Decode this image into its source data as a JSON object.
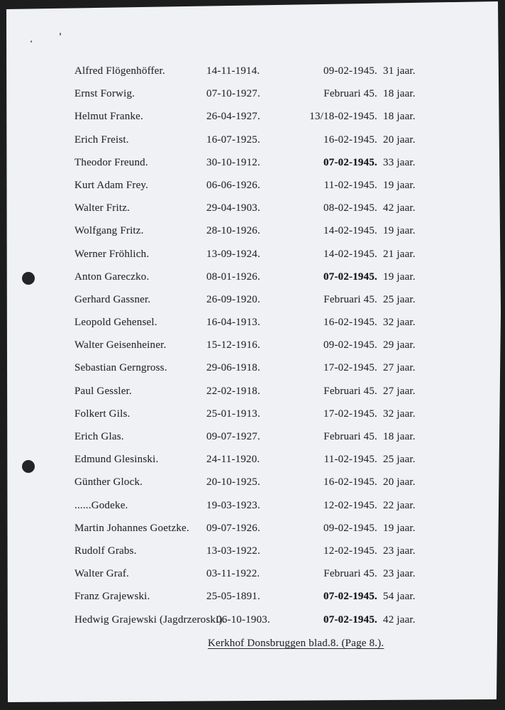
{
  "document": {
    "footer": "Kerkhof Donsbruggen blad.8. (Page 8.).",
    "columns": [
      "name",
      "birth_date",
      "death_date",
      "age"
    ],
    "rows": [
      {
        "name": "Alfred Flögenhöffer.",
        "born": "14-11-1914.",
        "died": "09-02-1945.",
        "age": "31 jaar.",
        "died_emphasis": false
      },
      {
        "name": "Ernst Forwig.",
        "born": "07-10-1927.",
        "died": "Februari 45.",
        "age": "18 jaar.",
        "died_emphasis": false
      },
      {
        "name": "Helmut Franke.",
        "born": "26-04-1927.",
        "died": "13/18-02-1945.",
        "age": "18 jaar.",
        "died_emphasis": false
      },
      {
        "name": "Erich Freist.",
        "born": "16-07-1925.",
        "died": "16-02-1945.",
        "age": "20 jaar.",
        "died_emphasis": false
      },
      {
        "name": "Theodor Freund.",
        "born": "30-10-1912.",
        "died": "07-02-1945.",
        "age": "33 jaar.",
        "died_emphasis": true
      },
      {
        "name": "Kurt Adam Frey.",
        "born": "06-06-1926.",
        "died": "11-02-1945.",
        "age": "19 jaar.",
        "died_emphasis": false
      },
      {
        "name": "Walter Fritz.",
        "born": "29-04-1903.",
        "died": "08-02-1945.",
        "age": "42 jaar.",
        "died_emphasis": false
      },
      {
        "name": "Wolfgang Fritz.",
        "born": "28-10-1926.",
        "died": "14-02-1945.",
        "age": "19 jaar.",
        "died_emphasis": false
      },
      {
        "name": "Werner Fröhlich.",
        "born": "13-09-1924.",
        "died": "14-02-1945.",
        "age": "21 jaar.",
        "died_emphasis": false
      },
      {
        "name": "Anton Gareczko.",
        "born": "08-01-1926.",
        "died": "07-02-1945.",
        "age": "19 jaar.",
        "died_emphasis": true
      },
      {
        "name": "Gerhard Gassner.",
        "born": "26-09-1920.",
        "died": "Februari 45.",
        "age": "25 jaar.",
        "died_emphasis": false
      },
      {
        "name": "Leopold Gehensel.",
        "born": "16-04-1913.",
        "died": "16-02-1945.",
        "age": "32 jaar.",
        "died_emphasis": false
      },
      {
        "name": "Walter Geisenheiner.",
        "born": "15-12-1916.",
        "died": "09-02-1945.",
        "age": "29 jaar.",
        "died_emphasis": false
      },
      {
        "name": "Sebastian Gerngross.",
        "born": "29-06-1918.",
        "died": "17-02-1945.",
        "age": "27 jaar.",
        "died_emphasis": false
      },
      {
        "name": "Paul Gessler.",
        "born": "22-02-1918.",
        "died": "Februari 45.",
        "age": "27 jaar.",
        "died_emphasis": false
      },
      {
        "name": "Folkert Gils.",
        "born": "25-01-1913.",
        "died": "17-02-1945.",
        "age": "32 jaar.",
        "died_emphasis": false
      },
      {
        "name": "Erich Glas.",
        "born": "09-07-1927.",
        "died": "Februari 45.",
        "age": "18 jaar.",
        "died_emphasis": false
      },
      {
        "name": "Edmund Glesinski.",
        "born": "24-11-1920.",
        "died": "11-02-1945.",
        "age": "25 jaar.",
        "died_emphasis": false
      },
      {
        "name": "Günther Glock.",
        "born": "20-10-1925.",
        "died": "16-02-1945.",
        "age": "20 jaar.",
        "died_emphasis": false
      },
      {
        "name": "......Godeke.",
        "born": "19-03-1923.",
        "died": "12-02-1945.",
        "age": "22 jaar.",
        "died_emphasis": false
      },
      {
        "name": "Martin Johannes Goetzke.",
        "born": "09-07-1926.",
        "died": "09-02-1945.",
        "age": "19 jaar.",
        "died_emphasis": false
      },
      {
        "name": "Rudolf Grabs.",
        "born": "13-03-1922.",
        "died": "12-02-1945.",
        "age": "23 jaar.",
        "died_emphasis": false
      },
      {
        "name": "Walter Graf.",
        "born": "03-11-1922.",
        "died": "Februari 45.",
        "age": "23 jaar.",
        "died_emphasis": false
      },
      {
        "name": "Franz Grajewski.",
        "born": "25-05-1891.",
        "died": "07-02-1945.",
        "age": "54 jaar.",
        "died_emphasis": true
      },
      {
        "name": "Hedwig Grajewski (Jagdrzeroski).",
        "born": "06-10-1903.",
        "died": "07-02-1945.",
        "age": "42 jaar.",
        "died_emphasis": true
      }
    ]
  },
  "colors": {
    "paper": "#f0f1f5",
    "scan_background": "#1d1d1d",
    "ink": "#2d2d30",
    "punch_hole": "#242426"
  }
}
